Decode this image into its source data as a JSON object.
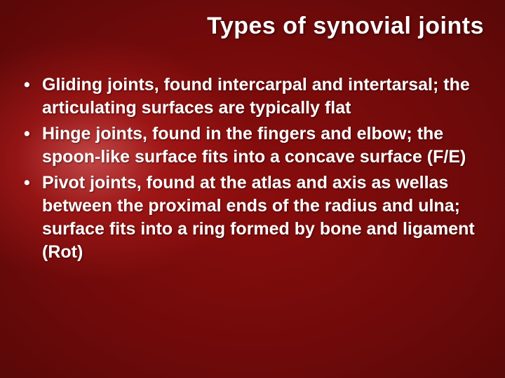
{
  "slide": {
    "title": "Types of synovial joints",
    "title_fontsize": 34,
    "title_color": "#ffffff",
    "bullets": [
      "Gliding joints, found intercarpal and intertarsal; the articulating surfaces are typically flat",
      "Hinge joints, found in the fingers and elbow; the spoon-like surface fits into a concave surface (F/E)",
      "Pivot joints, found at the atlas and axis as wellas  between the proximal ends of the radius and ulna; surface fits into a ring formed by bone and ligament (Rot)"
    ],
    "body_fontsize": 25,
    "body_color": "#ffffff",
    "body_weight": 700,
    "background": {
      "type": "radial-gradient",
      "center_glow_color": "#ff7878",
      "mid_color": "#8a0d0d",
      "outer_color": "#2e0303"
    }
  }
}
